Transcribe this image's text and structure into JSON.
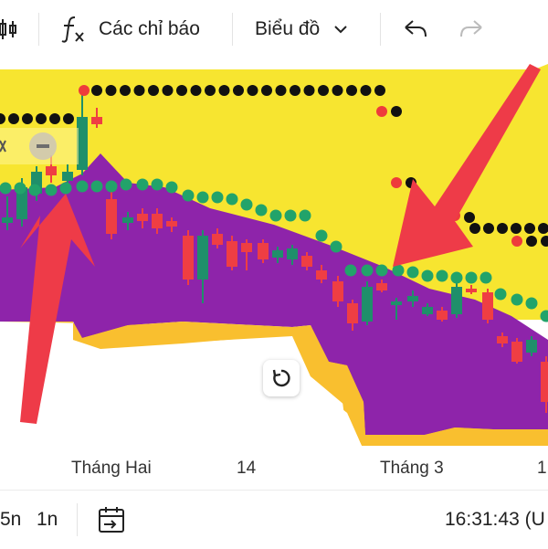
{
  "toolbar": {
    "indicators_label": "Các chỉ báo",
    "chart_type_label": "Biểu đồ"
  },
  "axis": {
    "x_labels": [
      "Tháng Hai",
      "14",
      "Tháng 3",
      "1"
    ]
  },
  "bottom": {
    "range_5n": "5n",
    "range_1n": "1n",
    "time": "16:31:43 (U"
  },
  "colors": {
    "cloud_upper": "#f7e530",
    "cloud_lower": "#8e24aa",
    "band": "#f9bf2f",
    "candle_up": "#1f8f6a",
    "candle_down": "#ef3e43",
    "dot_green": "#22a36a",
    "dot_black": "#111111",
    "dot_red": "#ee3b3b",
    "arrow": "#ee3b48"
  }
}
